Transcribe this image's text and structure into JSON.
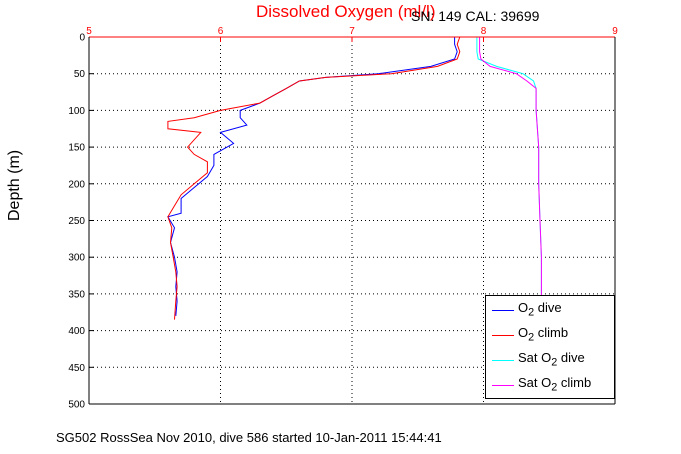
{
  "title": "Dissolved Oxygen (ml/l)",
  "serial_text": "SN: 149  CAL: 39699",
  "caption": "SG502 RossSea Nov 2010, dive 586 started 10-Jan-2011 15:44:41",
  "colors": {
    "top_axis": "#ff0000",
    "title": "#ff0000"
  },
  "chart_data": {
    "type": "line",
    "title": "Dissolved Oxygen (ml/l)",
    "xlabel": "",
    "ylabel": "Depth (m)",
    "xlim": [
      5,
      9
    ],
    "ylim": [
      0,
      500
    ],
    "y_reversed": true,
    "x_ticks": [
      "5",
      "6",
      "7",
      "8",
      "9"
    ],
    "y_ticks": [
      "0",
      "50",
      "100",
      "150",
      "200",
      "250",
      "300",
      "350",
      "400",
      "450",
      "500"
    ],
    "grid": true,
    "legend_position": "bottom-right",
    "series": [
      {
        "name": "O2 dive",
        "label_main": "O",
        "label_sub": "2",
        "label_rest": " dive",
        "color": "#0000ff",
        "points": [
          [
            7.78,
            0
          ],
          [
            7.78,
            10
          ],
          [
            7.8,
            20
          ],
          [
            7.78,
            30
          ],
          [
            7.6,
            40
          ],
          [
            7.2,
            50
          ],
          [
            6.8,
            55
          ],
          [
            6.6,
            60
          ],
          [
            6.5,
            70
          ],
          [
            6.4,
            80
          ],
          [
            6.3,
            90
          ],
          [
            6.15,
            100
          ],
          [
            6.15,
            110
          ],
          [
            6.2,
            120
          ],
          [
            6.0,
            130
          ],
          [
            6.1,
            145
          ],
          [
            5.95,
            160
          ],
          [
            5.95,
            175
          ],
          [
            5.9,
            190
          ],
          [
            5.8,
            205
          ],
          [
            5.7,
            220
          ],
          [
            5.7,
            240
          ],
          [
            5.6,
            245
          ],
          [
            5.65,
            260
          ],
          [
            5.62,
            280
          ],
          [
            5.65,
            300
          ],
          [
            5.67,
            320
          ],
          [
            5.66,
            340
          ],
          [
            5.67,
            360
          ],
          [
            5.66,
            380
          ]
        ]
      },
      {
        "name": "O2 climb",
        "label_main": "O",
        "label_sub": "2",
        "label_rest": " climb",
        "color": "#ff0000",
        "points": [
          [
            7.82,
            0
          ],
          [
            7.8,
            10
          ],
          [
            7.82,
            20
          ],
          [
            7.8,
            30
          ],
          [
            7.65,
            40
          ],
          [
            7.3,
            50
          ],
          [
            6.8,
            55
          ],
          [
            6.6,
            60
          ],
          [
            6.5,
            70
          ],
          [
            6.4,
            80
          ],
          [
            6.3,
            90
          ],
          [
            6.0,
            100
          ],
          [
            5.8,
            110
          ],
          [
            5.6,
            115
          ],
          [
            5.6,
            125
          ],
          [
            5.85,
            130
          ],
          [
            5.75,
            150
          ],
          [
            5.8,
            160
          ],
          [
            5.9,
            170
          ],
          [
            5.9,
            185
          ],
          [
            5.8,
            200
          ],
          [
            5.7,
            215
          ],
          [
            5.65,
            230
          ],
          [
            5.6,
            245
          ],
          [
            5.63,
            260
          ],
          [
            5.62,
            280
          ],
          [
            5.64,
            300
          ],
          [
            5.66,
            320
          ],
          [
            5.67,
            340
          ],
          [
            5.66,
            360
          ],
          [
            5.65,
            385
          ]
        ]
      },
      {
        "name": "Sat O2 dive",
        "label_main": "Sat O",
        "label_sub": "2",
        "label_rest": " dive",
        "color": "#00ffff",
        "points": [
          [
            7.95,
            0
          ],
          [
            7.95,
            10
          ],
          [
            7.95,
            20
          ],
          [
            7.96,
            30
          ],
          [
            8.1,
            40
          ],
          [
            8.3,
            50
          ],
          [
            8.38,
            60
          ],
          [
            8.4,
            70
          ],
          [
            8.4,
            100
          ],
          [
            8.42,
            150
          ],
          [
            8.42,
            200
          ],
          [
            8.43,
            250
          ],
          [
            8.44,
            300
          ],
          [
            8.44,
            350
          ]
        ]
      },
      {
        "name": "Sat O2 climb",
        "label_main": "Sat O",
        "label_sub": "2",
        "label_rest": " climb",
        "color": "#ff00ff",
        "points": [
          [
            7.97,
            0
          ],
          [
            7.97,
            10
          ],
          [
            7.97,
            20
          ],
          [
            7.98,
            30
          ],
          [
            8.05,
            40
          ],
          [
            8.25,
            50
          ],
          [
            8.33,
            60
          ],
          [
            8.4,
            70
          ],
          [
            8.4,
            100
          ],
          [
            8.42,
            150
          ],
          [
            8.42,
            200
          ],
          [
            8.43,
            250
          ],
          [
            8.44,
            300
          ],
          [
            8.44,
            360
          ]
        ]
      }
    ]
  }
}
